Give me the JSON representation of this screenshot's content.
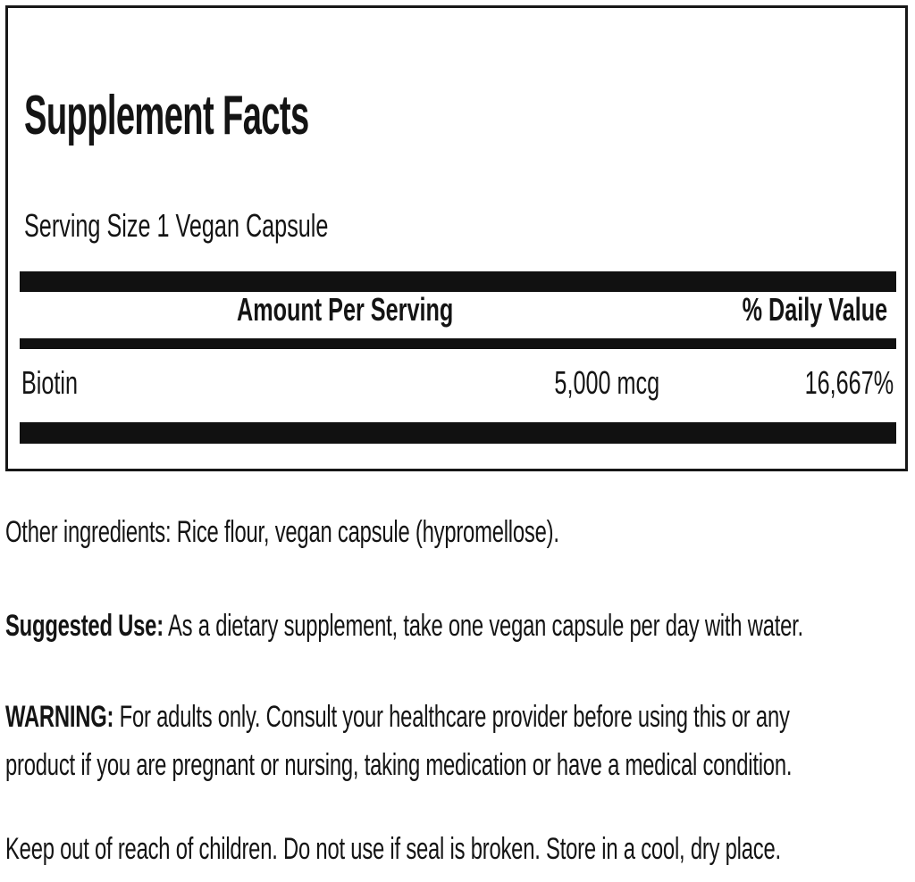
{
  "panel": {
    "title": "Supplement Facts",
    "serving_size": "Serving Size 1 Vegan Capsule",
    "columns": {
      "amount": "Amount Per Serving",
      "daily_value": "% Daily Value"
    },
    "rows": [
      {
        "name": "Biotin",
        "amount": "5,000 mcg",
        "daily_value": "16,667%"
      }
    ]
  },
  "info": {
    "other_ingredients": "Other ingredients: Rice flour, vegan capsule (hypromellose).",
    "suggested_use_label": "Suggested Use:",
    "suggested_use_text": "As a dietary supplement, take one vegan capsule per day with water.",
    "warning_label": "WARNING:",
    "warning_text": "For adults only. Consult your healthcare provider before using this or any\nproduct if you are pregnant or nursing, taking medication or have a medical condition.",
    "storage_text": "Keep out of reach of children. Do not use if seal is broken. Store in a cool, dry place."
  },
  "colors": {
    "ink": "#141414",
    "background": "#ffffff"
  }
}
